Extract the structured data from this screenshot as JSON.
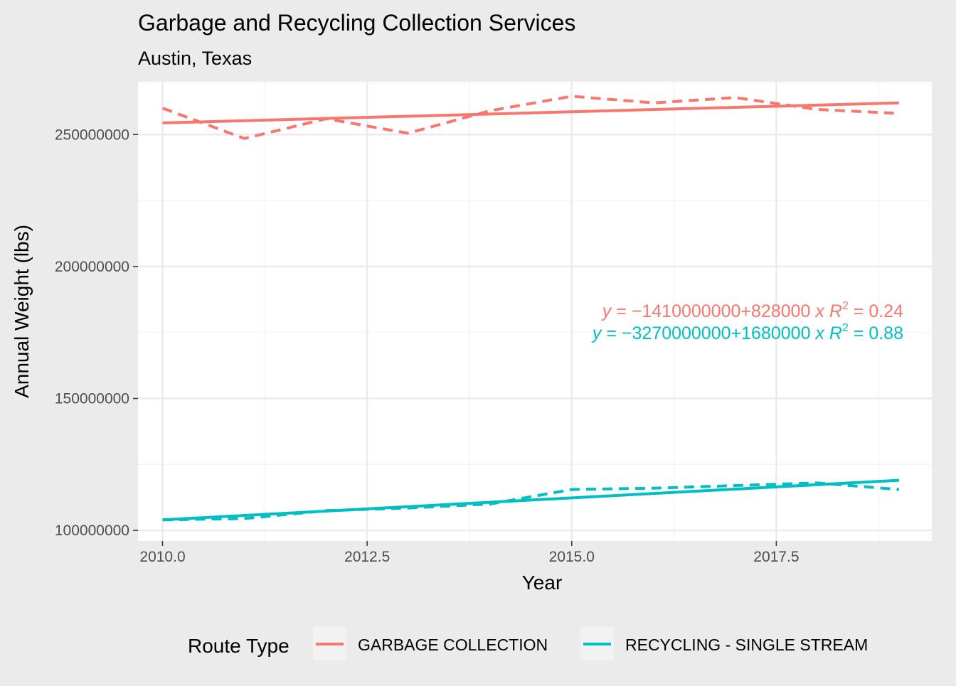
{
  "chart_data": {
    "type": "line",
    "title": "Garbage and Recycling Collection Services",
    "subtitle": "Austin, Texas",
    "xlabel": "Year",
    "ylabel": "Annual Weight (lbs)",
    "xlim": [
      2009.7,
      2019.4
    ],
    "ylim": [
      96000000,
      270000000
    ],
    "x_ticks": [
      2010.0,
      2012.5,
      2015.0,
      2017.5
    ],
    "x_tick_labels": [
      "2010.0",
      "2012.5",
      "2015.0",
      "2017.5"
    ],
    "y_ticks": [
      100000000,
      150000000,
      200000000,
      250000000
    ],
    "y_tick_labels": [
      "100000000",
      "150000000",
      "200000000",
      "250000000"
    ],
    "grid": true,
    "legend": {
      "title": "Route Type",
      "position": "bottom",
      "entries": [
        "GARBAGE COLLECTION",
        "RECYCLING - SINGLE STREAM"
      ]
    },
    "series": [
      {
        "name": "GARBAGE COLLECTION",
        "color": "#F8766D",
        "x": [
          2010,
          2011,
          2012,
          2013,
          2014,
          2015,
          2016,
          2017,
          2018,
          2019
        ],
        "actual": [
          260000000,
          248500000,
          256000000,
          250500000,
          259000000,
          264500000,
          262000000,
          264000000,
          259500000,
          258000000
        ],
        "fit": [
          254400000,
          262000000
        ],
        "equation": {
          "lhs": "y",
          "intercept_sign": "−",
          "intercept": "1410000000",
          "op": "+",
          "slope": "828000",
          "var": "x",
          "r_label": "R",
          "r_exp": "2",
          "r_value": "= 0.24"
        }
      },
      {
        "name": "RECYCLING - SINGLE STREAM",
        "color": "#00BFC4",
        "x": [
          2010,
          2011,
          2012,
          2013,
          2014,
          2015,
          2016,
          2017,
          2018,
          2019
        ],
        "actual": [
          104000000,
          104500000,
          107500000,
          108500000,
          110000000,
          115500000,
          116000000,
          117000000,
          118000000,
          115500000
        ],
        "fit": [
          104000000,
          119000000
        ],
        "equation": {
          "lhs": "y",
          "intercept_sign": "−",
          "intercept": "3270000000",
          "op": "+",
          "slope": "1680000",
          "var": "x",
          "r_label": "R",
          "r_exp": "2",
          "r_value": "= 0.88"
        }
      }
    ]
  }
}
